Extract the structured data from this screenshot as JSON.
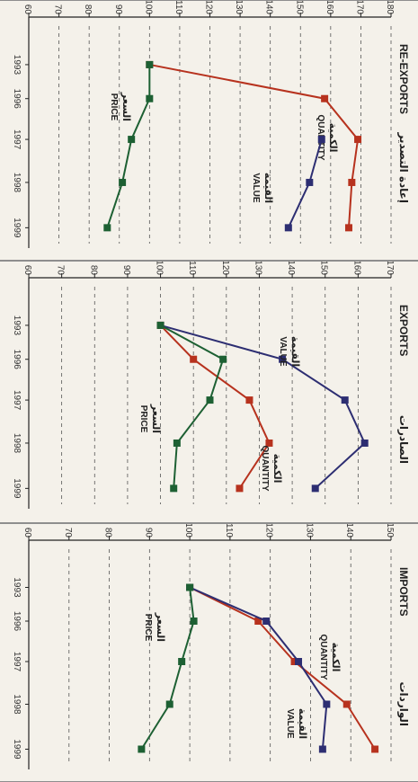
{
  "colors": {
    "background": "#232f7a",
    "panel": "#f4f1ea",
    "quantity": "#b7321e",
    "value": "#2d2e72",
    "price": "#1d6033",
    "gridline": "#555555",
    "axis": "#222222"
  },
  "chart_data": [
    {
      "type": "line",
      "title": "RE-EXPORTS",
      "title_ar": "إعادة التصدير",
      "x": [
        "1993",
        "1996",
        "1997",
        "1998",
        "1999"
      ],
      "ylim": [
        60,
        180
      ],
      "yticks": [
        180,
        170,
        160,
        150,
        140,
        130,
        120,
        110,
        100,
        90,
        80,
        70,
        60
      ],
      "grid": true,
      "series": [
        {
          "name": "QUANTITY",
          "name_ar": "الكمية",
          "color": "#b7321e",
          "values": [
            100,
            158,
            169,
            167,
            166
          ]
        },
        {
          "name": "VALUE",
          "name_ar": "القيمة",
          "color": "#2d2e72",
          "values": [
            null,
            null,
            157,
            153,
            146
          ]
        },
        {
          "name": "PRICE",
          "name_ar": "السعر",
          "color": "#1d6033",
          "values": [
            100,
            100,
            94,
            91,
            86
          ]
        }
      ]
    },
    {
      "type": "line",
      "title": "EXPORTS",
      "title_ar": "الصادرات",
      "x": [
        "1993",
        "1996",
        "1997",
        "1998",
        "1999"
      ],
      "ylim": [
        60,
        170
      ],
      "yticks": [
        170,
        160,
        150,
        140,
        130,
        120,
        110,
        100,
        90,
        80,
        70,
        60
      ],
      "grid": true,
      "series": [
        {
          "name": "VALUE",
          "name_ar": "القيمة",
          "color": "#2d2e72",
          "values": [
            100,
            137,
            156,
            162,
            147
          ]
        },
        {
          "name": "QUANTITY",
          "name_ar": "الكمية",
          "color": "#b7321e",
          "values": [
            100,
            110,
            127,
            133,
            124
          ]
        },
        {
          "name": "PRICE",
          "name_ar": "السعر",
          "color": "#1d6033",
          "values": [
            100,
            119,
            115,
            105,
            104
          ]
        }
      ]
    },
    {
      "type": "line",
      "title": "IMPORTS",
      "title_ar": "الواردات",
      "x": [
        "1993",
        "1996",
        "1997",
        "1998",
        "1999"
      ],
      "ylim": [
        60,
        150
      ],
      "yticks": [
        150,
        140,
        130,
        120,
        110,
        100,
        90,
        80,
        70,
        60
      ],
      "grid": true,
      "series": [
        {
          "name": "QUANTITY",
          "name_ar": "الكمية",
          "color": "#b7321e",
          "values": [
            100,
            117,
            126,
            139,
            146
          ]
        },
        {
          "name": "VALUE",
          "name_ar": "القيمة",
          "color": "#2d2e72",
          "values": [
            100,
            119,
            127,
            134,
            133
          ]
        },
        {
          "name": "PRICE",
          "name_ar": "السعر",
          "color": "#1d6033",
          "values": [
            100,
            101,
            98,
            95,
            88
          ]
        }
      ]
    }
  ]
}
